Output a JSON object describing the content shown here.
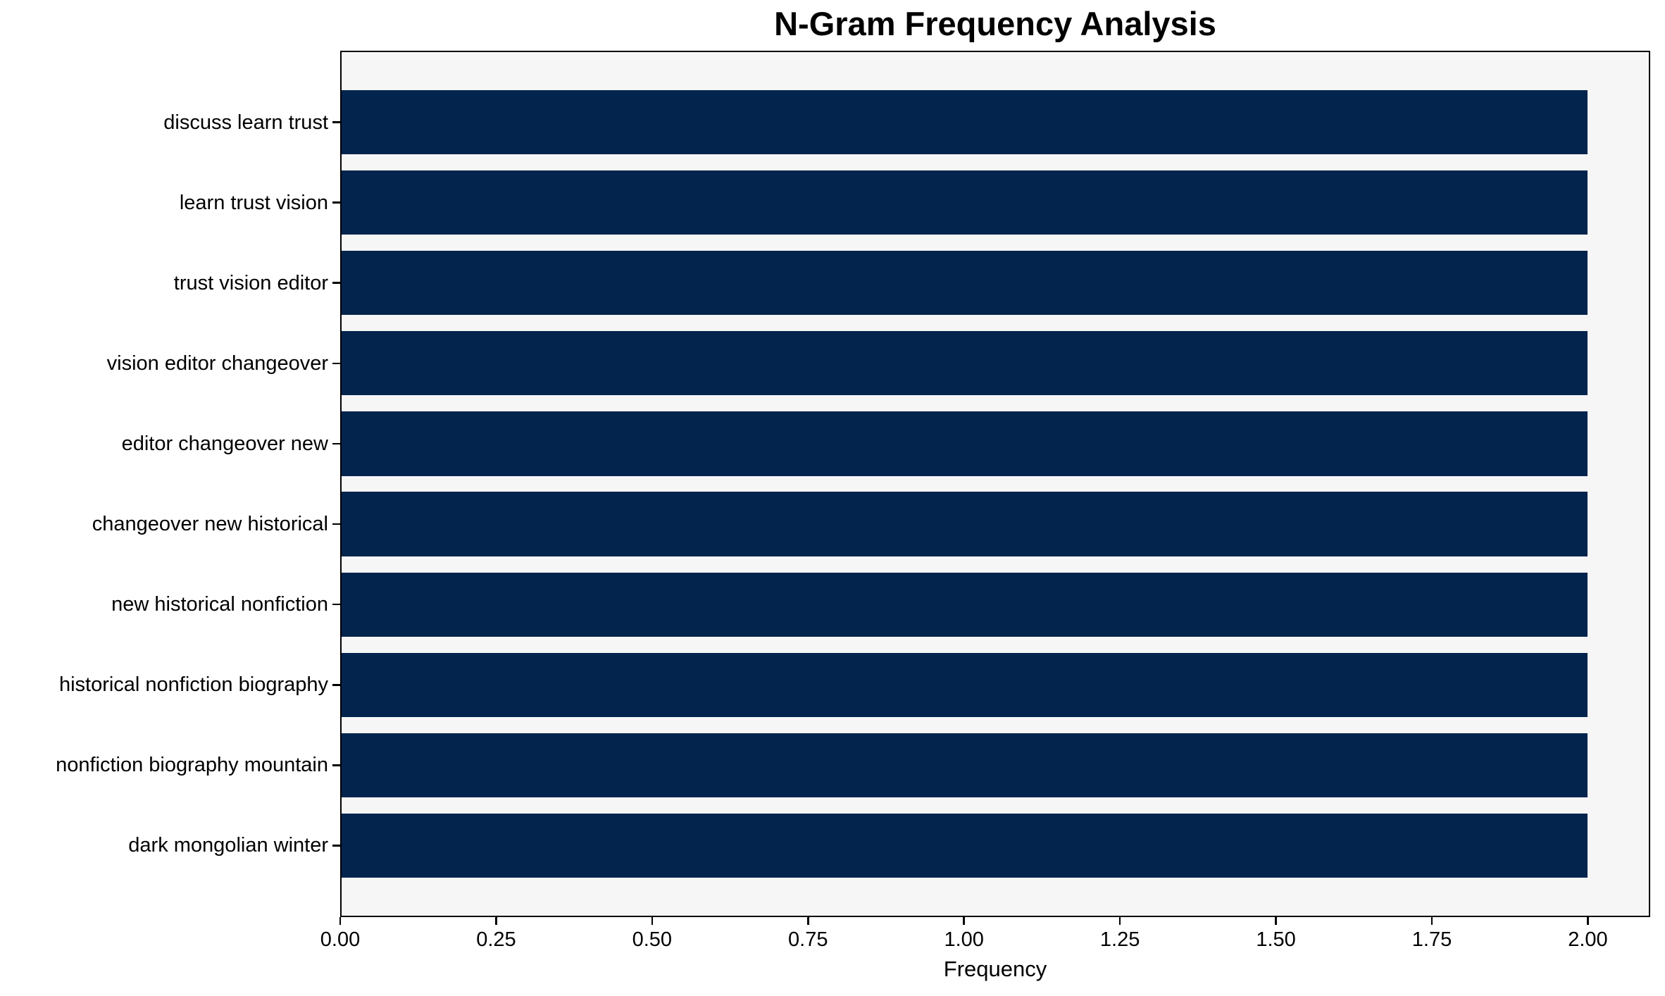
{
  "title": "N-Gram Frequency Analysis",
  "chart_data": {
    "type": "bar",
    "orientation": "horizontal",
    "title": "N-Gram Frequency Analysis",
    "categories": [
      "discuss learn trust",
      "learn trust vision",
      "trust vision editor",
      "vision editor changeover",
      "editor changeover new",
      "changeover new historical",
      "new historical nonfiction",
      "historical nonfiction biography",
      "nonfiction biography mountain",
      "dark mongolian winter"
    ],
    "values": [
      2,
      2,
      2,
      2,
      2,
      2,
      2,
      2,
      2,
      2
    ],
    "xlabel": "Frequency",
    "ylabel": "",
    "xlim": [
      0,
      2.1
    ],
    "xtick_values": [
      0,
      0.25,
      0.5,
      0.75,
      1,
      1.25,
      1.5,
      1.75,
      2
    ],
    "xtick_labels": [
      "0.00",
      "0.25",
      "0.50",
      "0.75",
      "1.00",
      "1.25",
      "1.50",
      "1.75",
      "2.00"
    ],
    "grid": false,
    "legend": null,
    "colors": {
      "bar": "#02244d",
      "plot_background": "#f6f6f7",
      "figure_background": "#ffffff",
      "spine": "#000000",
      "text": "#000000"
    }
  }
}
